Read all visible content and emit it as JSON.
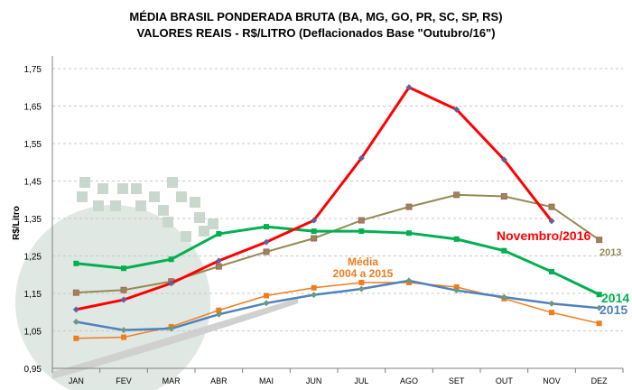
{
  "chart_data": {
    "type": "line",
    "title": "MÉDIA BRASIL PONDERADA BRUTA (BA, MG, GO, PR, SC, SP, RS)",
    "subtitle": "VALORES REAIS - R$/LITRO (Deflacionados Base \"Outubro/16\")",
    "xlabel": "",
    "ylabel": "R$/Litro",
    "ylim": [
      0.95,
      1.75
    ],
    "yticks": [
      "0,95",
      "1,05",
      "1,15",
      "1,25",
      "1,35",
      "1,45",
      "1,55",
      "1,65",
      "1,75"
    ],
    "grid": true,
    "legend": "inline labels",
    "categories": [
      "JAN",
      "FEV",
      "MAR",
      "ABR",
      "MAI",
      "JUN",
      "JUL",
      "AGO",
      "SET",
      "OUT",
      "NOV",
      "DEZ"
    ],
    "series": [
      {
        "name": "Média\n2004 a 2015",
        "label_lines": [
          "Média",
          "2004 a 2015"
        ],
        "color": "#f07c1c",
        "marker": "square",
        "values": [
          1.03,
          1.033,
          1.061,
          1.105,
          1.144,
          1.165,
          1.179,
          1.179,
          1.167,
          1.136,
          1.099,
          1.07
        ]
      },
      {
        "name": "2015",
        "color": "#4f81bd",
        "marker": "diamond",
        "values": [
          1.074,
          1.052,
          1.056,
          1.094,
          1.124,
          1.146,
          1.162,
          1.184,
          1.158,
          1.14,
          1.123,
          1.111
        ]
      },
      {
        "name": "2013",
        "color": "#948a54",
        "marker": "square",
        "values": [
          1.152,
          1.159,
          1.182,
          1.222,
          1.261,
          1.297,
          1.345,
          1.381,
          1.413,
          1.409,
          1.381,
          1.293
        ]
      },
      {
        "name": "2014",
        "color": "#00b050",
        "marker": "square",
        "values": [
          1.23,
          1.217,
          1.241,
          1.309,
          1.328,
          1.316,
          1.316,
          1.311,
          1.295,
          1.264,
          1.208,
          1.147
        ]
      },
      {
        "name": "Novembro/2016",
        "color": "#ff0000",
        "marker": "diamond",
        "values": [
          1.107,
          1.133,
          1.177,
          1.237,
          1.287,
          1.345,
          1.511,
          1.7,
          1.641,
          1.507,
          1.343,
          null
        ]
      }
    ]
  }
}
